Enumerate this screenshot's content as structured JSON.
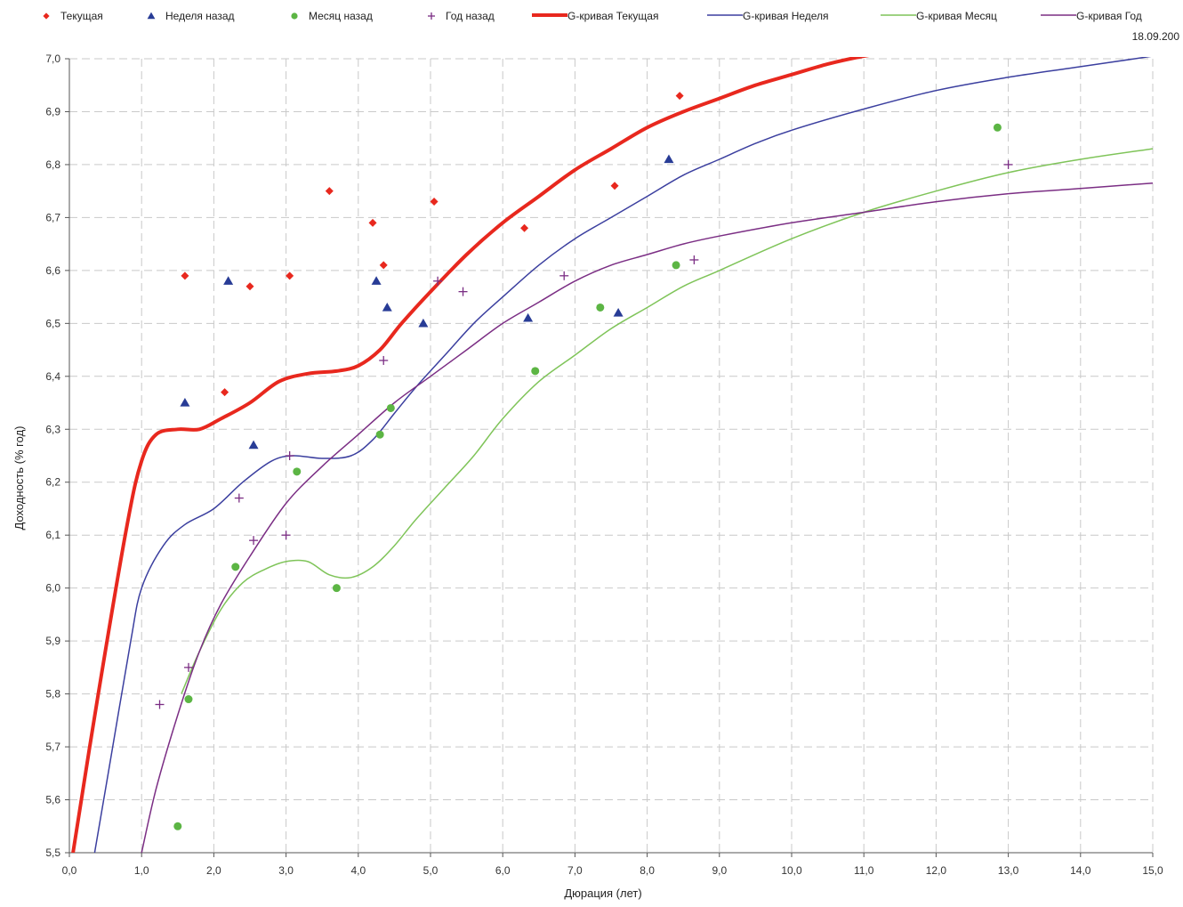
{
  "chart_data": {
    "type": "scatter",
    "date_label": "18.09.200",
    "xlabel": "Дюрация (лет)",
    "ylabel": "Доходность (% год)",
    "xlim": [
      0,
      15
    ],
    "ylim": [
      5.5,
      7.0
    ],
    "x_ticks": [
      "0,0",
      "1,0",
      "2,0",
      "3,0",
      "4,0",
      "5,0",
      "6,0",
      "7,0",
      "8,0",
      "9,0",
      "10,0",
      "11,0",
      "12,0",
      "13,0",
      "14,0",
      "15,0"
    ],
    "y_ticks": [
      "5,5",
      "5,6",
      "5,7",
      "5,8",
      "5,9",
      "6,0",
      "6,1",
      "6,2",
      "6,3",
      "6,4",
      "6,5",
      "6,6",
      "6,7",
      "6,8",
      "6,9",
      "7,0"
    ],
    "grid": true,
    "legend_position": "top",
    "series": [
      {
        "name": "Текущая",
        "kind": "points",
        "marker": "diamond",
        "color": "#e8281e",
        "points": [
          [
            1.6,
            6.59
          ],
          [
            2.15,
            6.37
          ],
          [
            2.5,
            6.57
          ],
          [
            3.05,
            6.59
          ],
          [
            3.6,
            6.75
          ],
          [
            4.2,
            6.69
          ],
          [
            4.35,
            6.61
          ],
          [
            5.05,
            6.73
          ],
          [
            6.3,
            6.68
          ],
          [
            7.55,
            6.76
          ],
          [
            8.45,
            6.93
          ]
        ]
      },
      {
        "name": "Неделя назад",
        "kind": "points",
        "marker": "triangle",
        "color": "#283c96",
        "points": [
          [
            1.6,
            6.35
          ],
          [
            2.2,
            6.58
          ],
          [
            2.55,
            6.27
          ],
          [
            4.25,
            6.58
          ],
          [
            4.4,
            6.53
          ],
          [
            4.9,
            6.5
          ],
          [
            6.35,
            6.51
          ],
          [
            7.6,
            6.52
          ],
          [
            8.3,
            6.81
          ]
        ]
      },
      {
        "name": "Месяц назад",
        "kind": "points",
        "marker": "circle",
        "color": "#5cb544",
        "points": [
          [
            1.5,
            5.55
          ],
          [
            1.65,
            5.79
          ],
          [
            2.3,
            6.04
          ],
          [
            3.15,
            6.22
          ],
          [
            3.7,
            6.0
          ],
          [
            4.3,
            6.29
          ],
          [
            4.45,
            6.34
          ],
          [
            6.45,
            6.41
          ],
          [
            7.35,
            6.53
          ],
          [
            8.4,
            6.61
          ],
          [
            12.85,
            6.87
          ]
        ]
      },
      {
        "name": "Год назад",
        "kind": "points",
        "marker": "plus",
        "color": "#7b2e84",
        "points": [
          [
            1.25,
            5.78
          ],
          [
            1.65,
            5.85
          ],
          [
            2.35,
            6.17
          ],
          [
            2.55,
            6.09
          ],
          [
            3.0,
            6.1
          ],
          [
            3.05,
            6.25
          ],
          [
            4.35,
            6.43
          ],
          [
            5.1,
            6.58
          ],
          [
            5.45,
            6.56
          ],
          [
            6.85,
            6.59
          ],
          [
            8.65,
            6.62
          ],
          [
            13.0,
            6.8
          ]
        ]
      },
      {
        "name": "G-кривая Текущая",
        "kind": "curve",
        "color": "#e8281e",
        "width": 4,
        "points": [
          [
            0.05,
            5.5
          ],
          [
            0.4,
            5.8
          ],
          [
            0.8,
            6.12
          ],
          [
            1.0,
            6.24
          ],
          [
            1.2,
            6.29
          ],
          [
            1.5,
            6.3
          ],
          [
            1.8,
            6.3
          ],
          [
            2.1,
            6.32
          ],
          [
            2.5,
            6.35
          ],
          [
            2.9,
            6.39
          ],
          [
            3.3,
            6.405
          ],
          [
            3.7,
            6.41
          ],
          [
            4.0,
            6.42
          ],
          [
            4.3,
            6.45
          ],
          [
            4.6,
            6.5
          ],
          [
            5.0,
            6.56
          ],
          [
            5.5,
            6.63
          ],
          [
            6.0,
            6.69
          ],
          [
            6.5,
            6.74
          ],
          [
            7.0,
            6.79
          ],
          [
            7.5,
            6.83
          ],
          [
            8.0,
            6.87
          ],
          [
            8.5,
            6.9
          ],
          [
            9.0,
            6.925
          ],
          [
            9.5,
            6.95
          ],
          [
            10.0,
            6.97
          ],
          [
            10.5,
            6.99
          ],
          [
            11.0,
            7.005
          ],
          [
            11.3,
            7.01
          ]
        ]
      },
      {
        "name": "G-кривая Неделя",
        "kind": "curve",
        "color": "#3b3f9f",
        "width": 1.5,
        "points": [
          [
            0.35,
            5.5
          ],
          [
            0.6,
            5.7
          ],
          [
            0.85,
            5.9
          ],
          [
            1.0,
            6.0
          ],
          [
            1.3,
            6.08
          ],
          [
            1.6,
            6.12
          ],
          [
            2.0,
            6.15
          ],
          [
            2.4,
            6.2
          ],
          [
            2.8,
            6.24
          ],
          [
            3.1,
            6.25
          ],
          [
            3.5,
            6.245
          ],
          [
            3.9,
            6.25
          ],
          [
            4.2,
            6.28
          ],
          [
            4.5,
            6.33
          ],
          [
            4.8,
            6.38
          ],
          [
            5.2,
            6.44
          ],
          [
            5.6,
            6.5
          ],
          [
            6.0,
            6.55
          ],
          [
            6.5,
            6.61
          ],
          [
            7.0,
            6.66
          ],
          [
            7.5,
            6.7
          ],
          [
            8.0,
            6.74
          ],
          [
            8.5,
            6.78
          ],
          [
            9.0,
            6.81
          ],
          [
            9.5,
            6.84
          ],
          [
            10.0,
            6.865
          ],
          [
            11.0,
            6.905
          ],
          [
            12.0,
            6.94
          ],
          [
            13.0,
            6.965
          ],
          [
            14.0,
            6.985
          ],
          [
            15.0,
            7.005
          ]
        ]
      },
      {
        "name": "G-кривая Месяц",
        "kind": "curve",
        "color": "#7fc459",
        "width": 1.5,
        "points": [
          [
            1.55,
            5.8
          ],
          [
            1.8,
            5.88
          ],
          [
            2.1,
            5.96
          ],
          [
            2.4,
            6.01
          ],
          [
            2.7,
            6.035
          ],
          [
            3.0,
            6.05
          ],
          [
            3.3,
            6.05
          ],
          [
            3.6,
            6.025
          ],
          [
            3.9,
            6.02
          ],
          [
            4.2,
            6.04
          ],
          [
            4.5,
            6.08
          ],
          [
            4.8,
            6.13
          ],
          [
            5.2,
            6.19
          ],
          [
            5.6,
            6.25
          ],
          [
            6.0,
            6.32
          ],
          [
            6.5,
            6.39
          ],
          [
            7.0,
            6.44
          ],
          [
            7.5,
            6.49
          ],
          [
            8.0,
            6.53
          ],
          [
            8.5,
            6.57
          ],
          [
            9.0,
            6.6
          ],
          [
            10.0,
            6.66
          ],
          [
            11.0,
            6.71
          ],
          [
            12.0,
            6.75
          ],
          [
            13.0,
            6.785
          ],
          [
            14.0,
            6.81
          ],
          [
            15.0,
            6.83
          ]
        ]
      },
      {
        "name": "G-кривая Год",
        "kind": "curve",
        "color": "#7b2e84",
        "width": 1.5,
        "points": [
          [
            1.0,
            5.5
          ],
          [
            1.2,
            5.62
          ],
          [
            1.5,
            5.76
          ],
          [
            1.8,
            5.88
          ],
          [
            2.1,
            5.97
          ],
          [
            2.5,
            6.06
          ],
          [
            3.0,
            6.16
          ],
          [
            3.5,
            6.23
          ],
          [
            4.0,
            6.29
          ],
          [
            4.5,
            6.35
          ],
          [
            5.0,
            6.4
          ],
          [
            5.5,
            6.45
          ],
          [
            6.0,
            6.5
          ],
          [
            6.5,
            6.54
          ],
          [
            7.0,
            6.58
          ],
          [
            7.5,
            6.61
          ],
          [
            8.0,
            6.63
          ],
          [
            8.5,
            6.65
          ],
          [
            9.0,
            6.665
          ],
          [
            10.0,
            6.69
          ],
          [
            11.0,
            6.71
          ],
          [
            12.0,
            6.73
          ],
          [
            13.0,
            6.745
          ],
          [
            14.0,
            6.755
          ],
          [
            15.0,
            6.765
          ]
        ]
      }
    ]
  }
}
